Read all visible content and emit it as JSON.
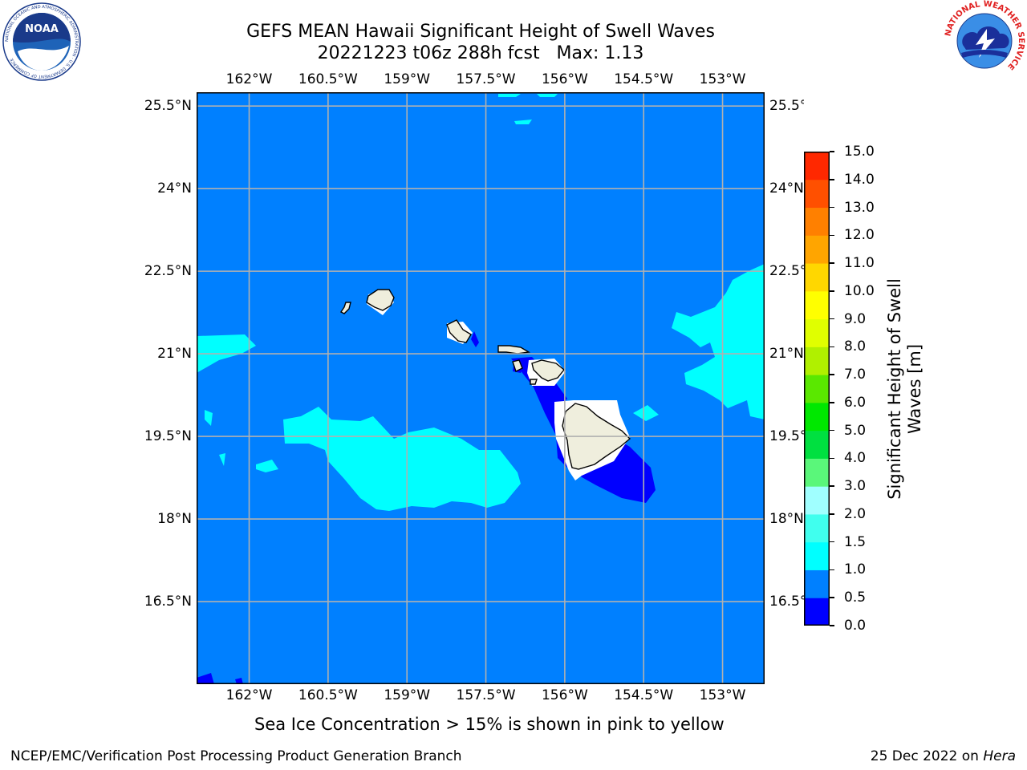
{
  "header": {
    "title_line1": "GEFS MEAN Hawaii Significant Height of Swell Waves",
    "title_line2": "20221223 t06z 288h fcst   Max: 1.13"
  },
  "map": {
    "lon_labels": [
      "162°W",
      "160.5°W",
      "159°W",
      "157.5°W",
      "156°W",
      "154.5°W",
      "153°W"
    ],
    "lon_values": [
      -162,
      -160.5,
      -159,
      -157.5,
      -156,
      -154.5,
      -153
    ],
    "lat_labels": [
      "25.5°N",
      "24°N",
      "22.5°N",
      "21°N",
      "19.5°N",
      "18°N",
      "16.5°N"
    ],
    "lat_values": [
      25.5,
      24,
      22.5,
      21,
      19.5,
      18,
      16.5
    ],
    "lon_range": [
      -163,
      -152.2
    ],
    "lat_range": [
      15,
      25.75
    ],
    "background_color": "#0080ff",
    "grid": true
  },
  "colorbar": {
    "title_line1": "Significant Height of Swell",
    "title_line2": "Waves [m]",
    "tick_labels": [
      "0.0",
      "0.5",
      "1.0",
      "1.5",
      "2.0",
      "3.0",
      "4.0",
      "5.0",
      "6.0",
      "7.0",
      "8.0",
      "9.0",
      "10.0",
      "11.0",
      "12.0",
      "13.0",
      "14.0",
      "15.0"
    ],
    "colors": [
      "#0000ff",
      "#0080ff",
      "#00ffff",
      "#40ffee",
      "#a0ffff",
      "#5af77a",
      "#00e040",
      "#00e800",
      "#5ae800",
      "#b0f000",
      "#e0ff00",
      "#ffff00",
      "#ffd700",
      "#ffa500",
      "#ff8000",
      "#ff5000",
      "#ff2800",
      "#ff0000"
    ]
  },
  "footer": {
    "subtitle": "Sea Ice Concentration > 15% is shown in pink to yellow",
    "left": "NCEP/EMC/Verification Post Processing Product Generation Branch",
    "right_date": "25 Dec 2022 on ",
    "right_host": "Hera"
  },
  "logos": {
    "noaa_text": "NOAA",
    "noaa_ring": "NATIONAL OCEANIC AND ATMOSPHERIC ADMINISTRATION · U.S. DEPARTMENT OF COMMERCE",
    "nws_ring": "NATIONAL WEATHER SERVICE"
  }
}
